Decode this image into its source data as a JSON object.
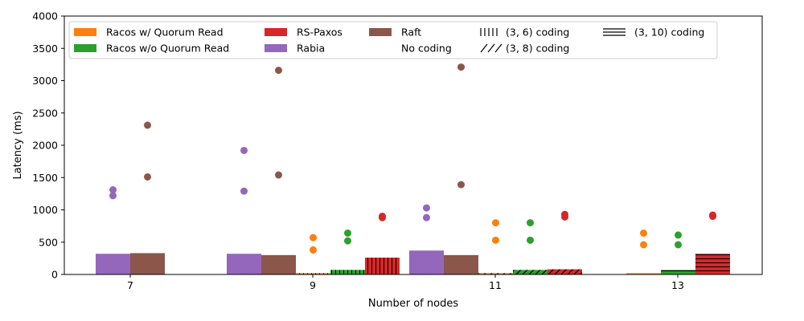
{
  "chart_data": {
    "type": "bar",
    "xlabel": "Number of nodes",
    "ylabel": "Latency (ms)",
    "ylim": [
      0,
      4000
    ],
    "yticks": [
      0,
      500,
      1000,
      1500,
      2000,
      2500,
      3000,
      3500,
      4000
    ],
    "xticks": [
      7,
      9,
      11,
      13
    ],
    "legend_position": "top",
    "colors": {
      "racos_qr": "#ff7f0e",
      "racos_noqr": "#2ca02c",
      "rs_paxos": "#d62728",
      "rabia": "#9467bd",
      "raft": "#8c564b"
    },
    "legend": [
      {
        "label": "Racos w/ Quorum Read",
        "kind": "swatch",
        "color": "#ff7f0e"
      },
      {
        "label": "Racos w/o Quorum Read",
        "kind": "swatch",
        "color": "#2ca02c"
      },
      {
        "label": "RS-Paxos",
        "kind": "swatch",
        "color": "#d62728"
      },
      {
        "label": "Rabia",
        "kind": "swatch",
        "color": "#9467bd"
      },
      {
        "label": "Raft",
        "kind": "swatch",
        "color": "#8c564b"
      },
      {
        "label": "No coding",
        "kind": "none"
      },
      {
        "label": "(3, 6) coding",
        "kind": "vertical-hatch"
      },
      {
        "label": "(3, 8) coding",
        "kind": "diagonal-hatch"
      },
      {
        "label": "(3, 10) coding",
        "kind": "horizontal-hatch"
      }
    ],
    "bars": [
      {
        "group": "7",
        "series": "Rabia",
        "color": "#9467bd",
        "hatch": "none",
        "value": 320,
        "points": [
          1310,
          1220
        ]
      },
      {
        "group": "7",
        "series": "Raft",
        "color": "#8c564b",
        "hatch": "none",
        "value": 330,
        "points": [
          2310,
          1510
        ]
      },
      {
        "group": "9 (no coding)",
        "series": "Rabia",
        "color": "#9467bd",
        "hatch": "none",
        "value": 320,
        "points": [
          1920,
          1290
        ]
      },
      {
        "group": "9 (no coding)",
        "series": "Raft",
        "color": "#8c564b",
        "hatch": "none",
        "value": 300,
        "points": [
          3160,
          1540
        ]
      },
      {
        "group": "9 (3, 6) coding",
        "series": "Racos w/ Quorum Read",
        "color": "#ff7f0e",
        "hatch": "vertical",
        "value": 20,
        "points": [
          570,
          380
        ]
      },
      {
        "group": "9 (3, 6) coding",
        "series": "Racos w/o Quorum Read",
        "color": "#2ca02c",
        "hatch": "vertical",
        "value": 70,
        "points": [
          640,
          520
        ]
      },
      {
        "group": "9 (3, 6) coding",
        "series": "RS-Paxos",
        "color": "#d62728",
        "hatch": "vertical",
        "value": 260,
        "points": [
          900,
          880
        ]
      },
      {
        "group": "11 (no coding)",
        "series": "Rabia",
        "color": "#9467bd",
        "hatch": "none",
        "value": 370,
        "points": [
          1030,
          880
        ]
      },
      {
        "group": "11 (no coding)",
        "series": "Raft",
        "color": "#8c564b",
        "hatch": "none",
        "value": 300,
        "points": [
          3210,
          1390
        ]
      },
      {
        "group": "11 (3, 8) coding",
        "series": "Racos w/ Quorum Read",
        "color": "#ff7f0e",
        "hatch": "diagonal",
        "value": 20,
        "points": [
          800,
          530
        ]
      },
      {
        "group": "11 (3, 8) coding",
        "series": "Racos w/o Quorum Read",
        "color": "#2ca02c",
        "hatch": "diagonal",
        "value": 70,
        "points": [
          800,
          530
        ]
      },
      {
        "group": "11 (3, 8) coding",
        "series": "RS-Paxos",
        "color": "#d62728",
        "hatch": "diagonal",
        "value": 80,
        "points": [
          930,
          890
        ]
      },
      {
        "group": "13 (3, 10) coding",
        "series": "Racos w/ Quorum Read",
        "color": "#ff7f0e",
        "hatch": "horizontal",
        "value": 20,
        "points": [
          640,
          460
        ]
      },
      {
        "group": "13 (3, 10) coding",
        "series": "Racos w/o Quorum Read",
        "color": "#2ca02c",
        "hatch": "horizontal",
        "value": 70,
        "points": [
          610,
          460
        ]
      },
      {
        "group": "13 (3, 10) coding",
        "series": "RS-Paxos",
        "color": "#d62728",
        "hatch": "horizontal",
        "value": 320,
        "points": [
          920,
          900
        ]
      }
    ]
  }
}
